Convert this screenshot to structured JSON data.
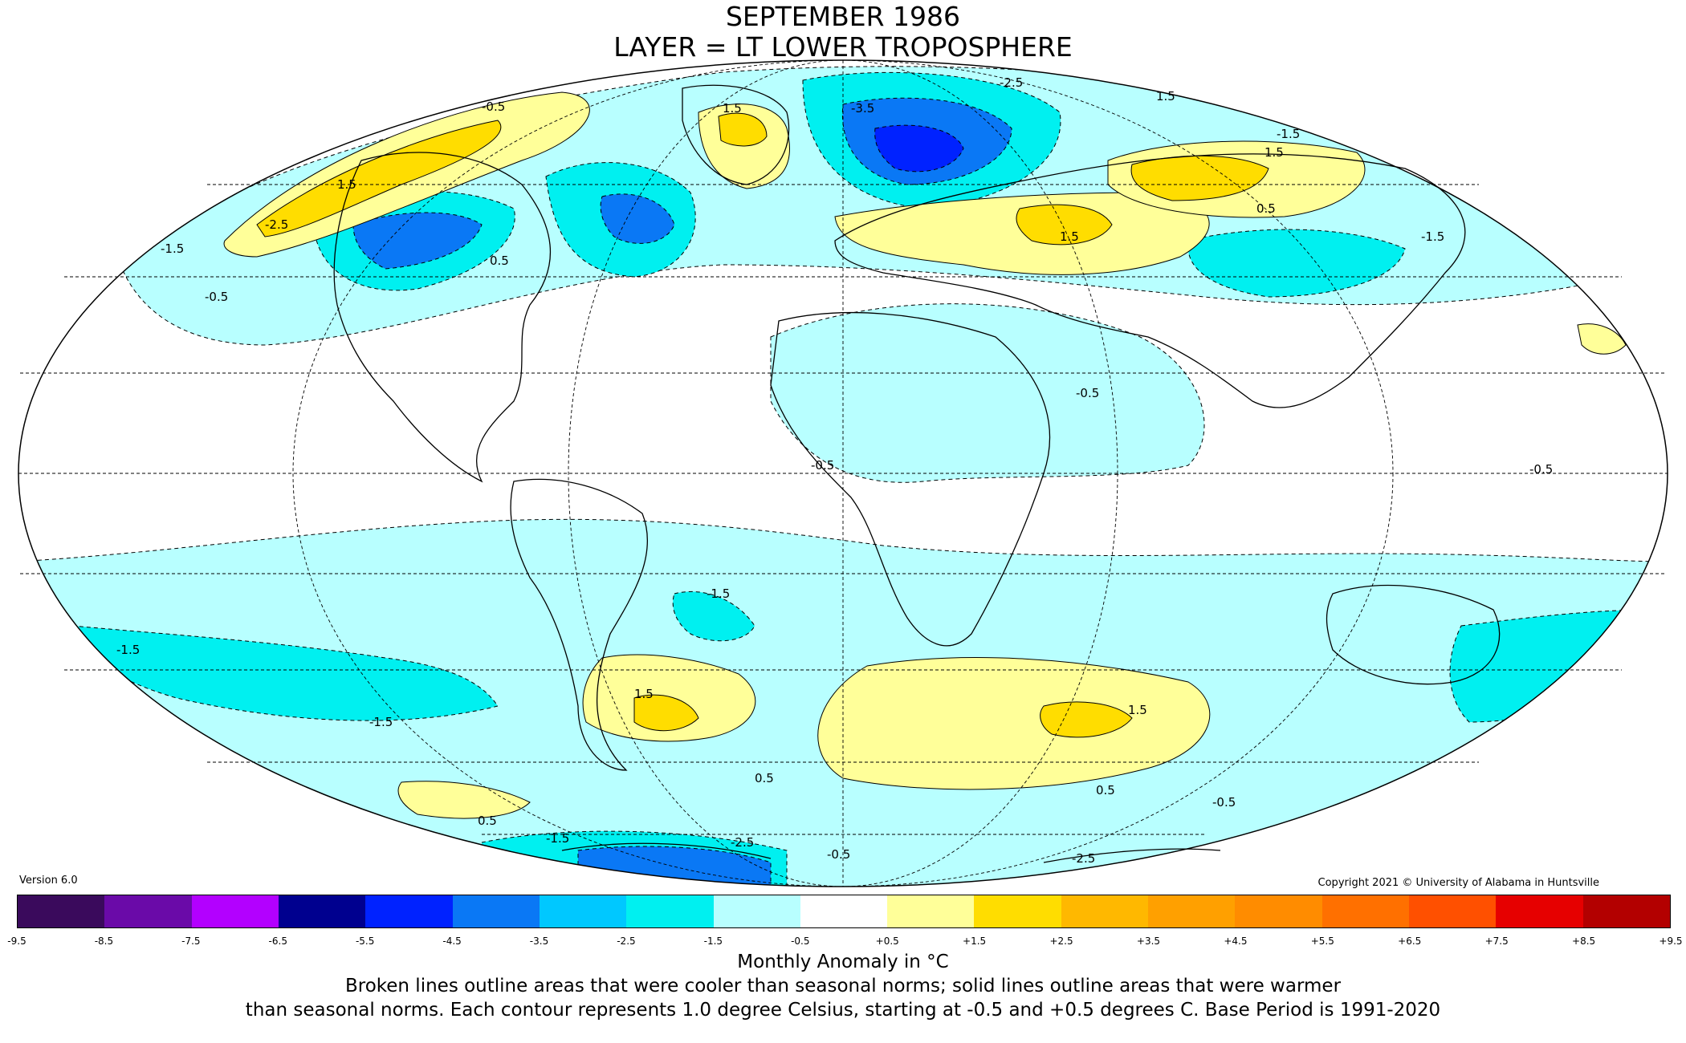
{
  "title_line1": "SEPTEMBER 1986",
  "title_line2": "LAYER = LT LOWER TROPOSPHERE",
  "version": "Version 6.0",
  "copyright": "Copyright 2021 © University of Alabama in Huntsville",
  "colorbar": {
    "ticks": [
      "-9.5",
      "-8.5",
      "-7.5",
      "-6.5",
      "-5.5",
      "-4.5",
      "-3.5",
      "-2.5",
      "-1.5",
      "-0.5",
      "+0.5",
      "+1.5",
      "+2.5",
      "+3.5",
      "+4.5",
      "+5.5",
      "+6.5",
      "+7.5",
      "+8.5",
      "+9.5"
    ],
    "colors": [
      "#3a0a5c",
      "#6a0aa8",
      "#b300ff",
      "#00008f",
      "#0022ff",
      "#0a78f5",
      "#00c8ff",
      "#00f0f0",
      "#b8ffff",
      "#ffffff",
      "#ffff99",
      "#ffdd00",
      "#ffb800",
      "#ffa000",
      "#ff8c00",
      "#ff7000",
      "#ff5000",
      "#e60000",
      "#b30000"
    ]
  },
  "caption_unit": "Monthly Anomaly in °C",
  "caption_line1": "Broken lines outline areas that were cooler than seasonal norms; solid lines outline areas that were warmer",
  "caption_line2": "than seasonal norms. Each contour represents 1.0 degree Celsius, starting at -0.5 and +0.5 degrees C. Base Period is 1991-2020",
  "legend_colors": {
    "cool_light": "#b8ffff",
    "cool_mid": "#00f0f0",
    "cool_deep": "#00c8ff",
    "cool_blue": "#0a78f5",
    "cool_darkblue": "#0022ff",
    "warm_light": "#ffff99",
    "warm_mid": "#ffdd00"
  },
  "contour_labels": [
    "-0.5",
    "-1.5",
    "-2.5",
    "-3.5",
    "0.5",
    "1.5"
  ]
}
